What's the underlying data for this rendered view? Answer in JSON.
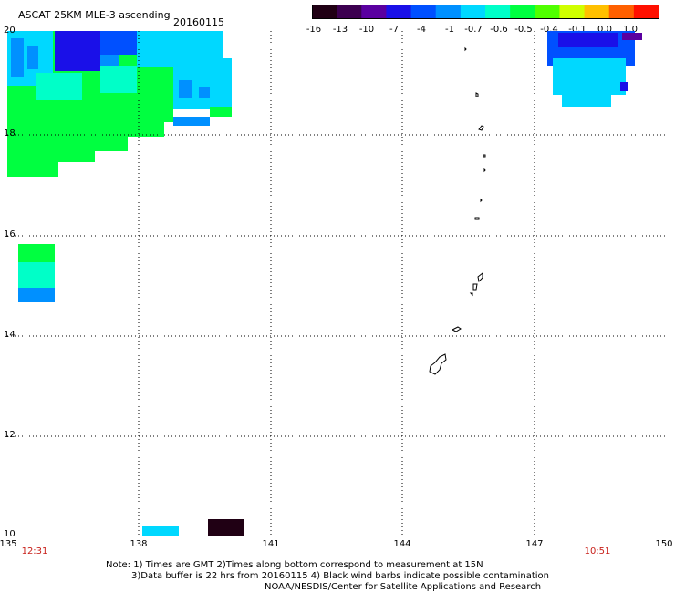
{
  "title": "ASCAT 25KM MLE-3 ascending",
  "date": "20160115",
  "colorbar": {
    "labels": [
      "-16",
      "-13",
      "-10",
      "-7",
      "-4",
      "-1",
      "-0.7",
      "-0.6",
      "-0.5",
      "-0.4",
      "-0.1",
      "0.0",
      "1.0"
    ],
    "colors": [
      "#200014",
      "#3c0050",
      "#5a00a0",
      "#1a10e8",
      "#0050ff",
      "#0090ff",
      "#00d8ff",
      "#00ffc8",
      "#00ff40",
      "#50ff00",
      "#d0ff00",
      "#ffc000",
      "#ff6000",
      "#ff1000"
    ]
  },
  "map": {
    "lat_labels": [
      "20",
      "18",
      "16",
      "14",
      "12",
      "10"
    ],
    "lon_labels": [
      "135",
      "138",
      "141",
      "144",
      "147",
      "150"
    ],
    "time_labels": {
      "left": "12:31",
      "right": "10:51"
    }
  },
  "notes": [
    "Note: 1) Times are GMT 2)Times along bottom correspond to measurement at 15N",
    "3)Data buffer is 22 hrs from 20160115 4) Black wind barbs indicate possible contamination",
    "NOAA/NESDIS/Center for Satellite Applications and Research"
  ],
  "colors": {
    "time_label": "#c8201a",
    "grid": "#000000"
  }
}
